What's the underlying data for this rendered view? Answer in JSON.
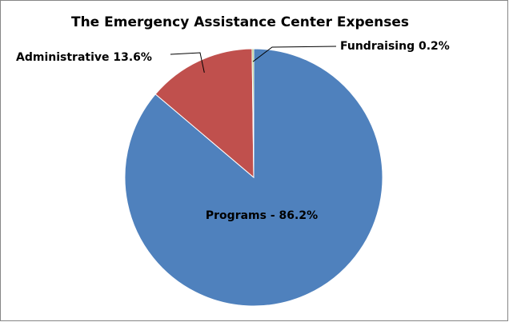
{
  "chart_data": {
    "type": "pie",
    "title": "The Emergency Assistance Center Expenses",
    "values": [
      86.2,
      13.6,
      0.2
    ],
    "value_labels": [
      "Programs - 86.2%",
      "Administrative 13.6%",
      "Fundraising 0.2%"
    ],
    "colors": [
      "#4f81bd",
      "#c0504d",
      "#9bbb59"
    ]
  }
}
